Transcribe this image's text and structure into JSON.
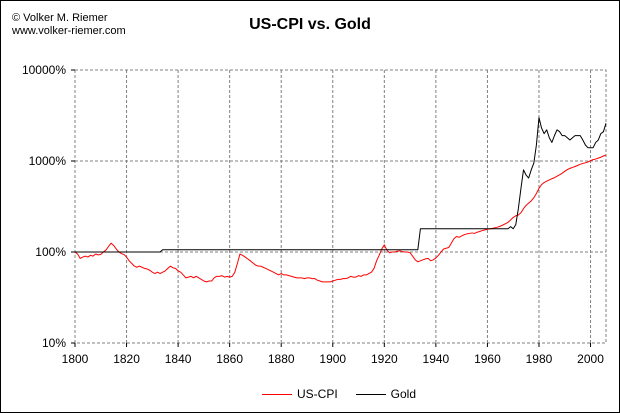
{
  "copyright": {
    "line1": "© Volker M. Riemer",
    "line2": "www.volker-riemer.com"
  },
  "colors": {
    "us_cpi": "#ff0000",
    "gold": "#000000",
    "grid": "#808080",
    "axis": "#000000",
    "background": "#ffffff"
  },
  "chart_data": {
    "type": "line",
    "title": "US-CPI vs. Gold",
    "xlabel": "",
    "ylabel": "",
    "x_ticks": [
      1800,
      1820,
      1840,
      1860,
      1880,
      1900,
      1920,
      1940,
      1960,
      1980,
      2000
    ],
    "y_ticks": [
      10,
      100,
      1000,
      10000
    ],
    "y_tick_labels": [
      "10%",
      "100%",
      "1000%",
      "10000%"
    ],
    "xlim": [
      1800,
      2006
    ],
    "ylim": [
      10,
      10000
    ],
    "y_scale": "log",
    "grid": true,
    "legend_position": "bottom-center",
    "series": [
      {
        "name": "US-CPI",
        "color_key": "us_cpi",
        "points": [
          [
            1800,
            100
          ],
          [
            1801,
            95
          ],
          [
            1802,
            85
          ],
          [
            1803,
            88
          ],
          [
            1804,
            90
          ],
          [
            1805,
            88
          ],
          [
            1806,
            92
          ],
          [
            1807,
            90
          ],
          [
            1808,
            95
          ],
          [
            1809,
            93
          ],
          [
            1810,
            94
          ],
          [
            1811,
            100
          ],
          [
            1812,
            105
          ],
          [
            1813,
            115
          ],
          [
            1814,
            125
          ],
          [
            1815,
            118
          ],
          [
            1816,
            108
          ],
          [
            1817,
            100
          ],
          [
            1818,
            96
          ],
          [
            1819,
            94
          ],
          [
            1820,
            88
          ],
          [
            1821,
            80
          ],
          [
            1822,
            75
          ],
          [
            1823,
            70
          ],
          [
            1824,
            68
          ],
          [
            1825,
            70
          ],
          [
            1826,
            68
          ],
          [
            1827,
            66
          ],
          [
            1828,
            65
          ],
          [
            1829,
            63
          ],
          [
            1830,
            60
          ],
          [
            1831,
            58
          ],
          [
            1832,
            60
          ],
          [
            1833,
            58
          ],
          [
            1834,
            60
          ],
          [
            1835,
            62
          ],
          [
            1836,
            66
          ],
          [
            1837,
            70
          ],
          [
            1838,
            67
          ],
          [
            1839,
            66
          ],
          [
            1840,
            62
          ],
          [
            1841,
            60
          ],
          [
            1842,
            56
          ],
          [
            1843,
            52
          ],
          [
            1844,
            53
          ],
          [
            1845,
            54
          ],
          [
            1846,
            52
          ],
          [
            1847,
            54
          ],
          [
            1848,
            52
          ],
          [
            1849,
            50
          ],
          [
            1850,
            48
          ],
          [
            1851,
            47
          ],
          [
            1852,
            48
          ],
          [
            1853,
            48
          ],
          [
            1854,
            52
          ],
          [
            1855,
            54
          ],
          [
            1856,
            54
          ],
          [
            1857,
            55
          ],
          [
            1858,
            53
          ],
          [
            1859,
            54
          ],
          [
            1860,
            53
          ],
          [
            1861,
            54
          ],
          [
            1862,
            60
          ],
          [
            1863,
            75
          ],
          [
            1864,
            95
          ],
          [
            1865,
            92
          ],
          [
            1866,
            88
          ],
          [
            1867,
            84
          ],
          [
            1868,
            80
          ],
          [
            1869,
            76
          ],
          [
            1870,
            72
          ],
          [
            1871,
            70
          ],
          [
            1872,
            70
          ],
          [
            1873,
            68
          ],
          [
            1874,
            66
          ],
          [
            1875,
            64
          ],
          [
            1876,
            62
          ],
          [
            1877,
            60
          ],
          [
            1878,
            58
          ],
          [
            1879,
            56
          ],
          [
            1880,
            58
          ],
          [
            1881,
            56
          ],
          [
            1882,
            56
          ],
          [
            1883,
            55
          ],
          [
            1884,
            54
          ],
          [
            1885,
            53
          ],
          [
            1886,
            52
          ],
          [
            1887,
            52
          ],
          [
            1888,
            52
          ],
          [
            1889,
            51
          ],
          [
            1890,
            52
          ],
          [
            1891,
            52
          ],
          [
            1892,
            51
          ],
          [
            1893,
            51
          ],
          [
            1894,
            49
          ],
          [
            1895,
            48
          ],
          [
            1896,
            47
          ],
          [
            1897,
            47
          ],
          [
            1898,
            47
          ],
          [
            1899,
            47
          ],
          [
            1900,
            48
          ],
          [
            1901,
            49
          ],
          [
            1902,
            50
          ],
          [
            1903,
            50
          ],
          [
            1904,
            51
          ],
          [
            1905,
            51
          ],
          [
            1906,
            52
          ],
          [
            1907,
            54
          ],
          [
            1908,
            53
          ],
          [
            1909,
            53
          ],
          [
            1910,
            55
          ],
          [
            1911,
            54
          ],
          [
            1912,
            56
          ],
          [
            1913,
            56
          ],
          [
            1914,
            58
          ],
          [
            1915,
            60
          ],
          [
            1916,
            66
          ],
          [
            1917,
            80
          ],
          [
            1918,
            92
          ],
          [
            1919,
            108
          ],
          [
            1920,
            120
          ],
          [
            1921,
            105
          ],
          [
            1922,
            98
          ],
          [
            1923,
            100
          ],
          [
            1924,
            100
          ],
          [
            1925,
            102
          ],
          [
            1926,
            103
          ],
          [
            1927,
            101
          ],
          [
            1928,
            100
          ],
          [
            1929,
            100
          ],
          [
            1930,
            98
          ],
          [
            1931,
            90
          ],
          [
            1932,
            82
          ],
          [
            1933,
            78
          ],
          [
            1934,
            80
          ],
          [
            1935,
            82
          ],
          [
            1936,
            84
          ],
          [
            1937,
            85
          ],
          [
            1938,
            80
          ],
          [
            1939,
            82
          ],
          [
            1940,
            86
          ],
          [
            1941,
            92
          ],
          [
            1942,
            100
          ],
          [
            1943,
            108
          ],
          [
            1944,
            110
          ],
          [
            1945,
            112
          ],
          [
            1946,
            125
          ],
          [
            1947,
            140
          ],
          [
            1948,
            148
          ],
          [
            1949,
            145
          ],
          [
            1950,
            150
          ],
          [
            1951,
            155
          ],
          [
            1952,
            158
          ],
          [
            1953,
            160
          ],
          [
            1954,
            162
          ],
          [
            1955,
            160
          ],
          [
            1956,
            165
          ],
          [
            1957,
            168
          ],
          [
            1958,
            172
          ],
          [
            1959,
            175
          ],
          [
            1960,
            178
          ],
          [
            1961,
            180
          ],
          [
            1962,
            182
          ],
          [
            1963,
            185
          ],
          [
            1964,
            188
          ],
          [
            1965,
            192
          ],
          [
            1966,
            198
          ],
          [
            1967,
            205
          ],
          [
            1968,
            212
          ],
          [
            1969,
            225
          ],
          [
            1970,
            240
          ],
          [
            1971,
            250
          ],
          [
            1972,
            255
          ],
          [
            1973,
            270
          ],
          [
            1974,
            300
          ],
          [
            1975,
            325
          ],
          [
            1976,
            345
          ],
          [
            1977,
            365
          ],
          [
            1978,
            395
          ],
          [
            1979,
            440
          ],
          [
            1980,
            500
          ],
          [
            1981,
            550
          ],
          [
            1982,
            580
          ],
          [
            1983,
            600
          ],
          [
            1984,
            620
          ],
          [
            1985,
            640
          ],
          [
            1986,
            655
          ],
          [
            1987,
            680
          ],
          [
            1988,
            705
          ],
          [
            1989,
            735
          ],
          [
            1990,
            770
          ],
          [
            1991,
            805
          ],
          [
            1992,
            830
          ],
          [
            1993,
            850
          ],
          [
            1994,
            870
          ],
          [
            1995,
            895
          ],
          [
            1996,
            920
          ],
          [
            1997,
            940
          ],
          [
            1998,
            955
          ],
          [
            1999,
            975
          ],
          [
            2000,
            1010
          ],
          [
            2001,
            1035
          ],
          [
            2002,
            1050
          ],
          [
            2003,
            1075
          ],
          [
            2004,
            1100
          ],
          [
            2005,
            1135
          ],
          [
            2006,
            1160
          ]
        ]
      },
      {
        "name": "Gold",
        "color_key": "gold",
        "points": [
          [
            1800,
            100
          ],
          [
            1833,
            100
          ],
          [
            1834,
            106
          ],
          [
            1933,
            106
          ],
          [
            1934,
            180
          ],
          [
            1968,
            180
          ],
          [
            1969,
            190
          ],
          [
            1970,
            180
          ],
          [
            1971,
            200
          ],
          [
            1972,
            300
          ],
          [
            1973,
            500
          ],
          [
            1974,
            800
          ],
          [
            1975,
            700
          ],
          [
            1976,
            650
          ],
          [
            1977,
            800
          ],
          [
            1978,
            950
          ],
          [
            1979,
            1500
          ],
          [
            1980,
            3000
          ],
          [
            1981,
            2300
          ],
          [
            1982,
            2000
          ],
          [
            1983,
            2200
          ],
          [
            1984,
            1800
          ],
          [
            1985,
            1600
          ],
          [
            1986,
            1900
          ],
          [
            1987,
            2200
          ],
          [
            1988,
            2100
          ],
          [
            1989,
            1900
          ],
          [
            1990,
            1900
          ],
          [
            1991,
            1800
          ],
          [
            1992,
            1700
          ],
          [
            1993,
            1800
          ],
          [
            1994,
            1900
          ],
          [
            1995,
            1900
          ],
          [
            1996,
            1900
          ],
          [
            1997,
            1700
          ],
          [
            1998,
            1500
          ],
          [
            1999,
            1400
          ],
          [
            2000,
            1400
          ],
          [
            2001,
            1400
          ],
          [
            2002,
            1600
          ],
          [
            2003,
            1700
          ],
          [
            2004,
            2000
          ],
          [
            2005,
            2100
          ],
          [
            2006,
            2600
          ]
        ]
      }
    ]
  }
}
